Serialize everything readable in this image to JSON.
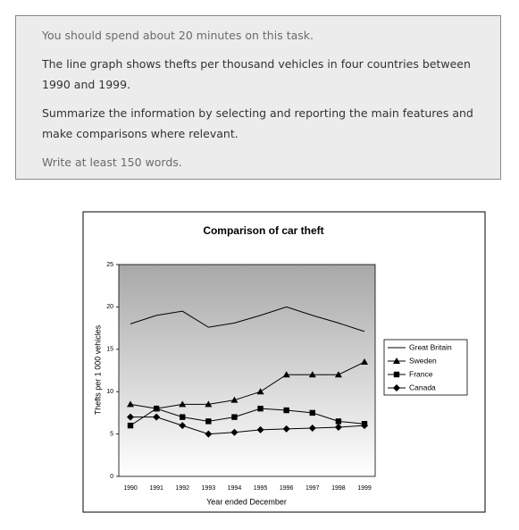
{
  "task": {
    "lines": [
      "You should spend about 20 minutes on this task.",
      "The line graph shows thefts per thousand vehicles in four countries between 1990 and 1999.",
      "Summarize the information by selecting and reporting the main features and make comparisons where relevant.",
      "Write at least 150 words."
    ]
  },
  "chart_data": {
    "type": "line",
    "title": "Comparison of car theft",
    "xlabel": "Year ended December",
    "ylabel": "Thefts per 1 000 vehicles",
    "categories": [
      "1990",
      "1991",
      "1992",
      "1993",
      "1994",
      "1995",
      "1996",
      "1997",
      "1998",
      "1999"
    ],
    "series": [
      {
        "name": "Great Britain",
        "color": "#000000",
        "marker": "none",
        "values": [
          18,
          19,
          19.5,
          17.6,
          18.1,
          19,
          20,
          19,
          18.1,
          17.1
        ]
      },
      {
        "name": "Sweden",
        "color": "#000000",
        "marker": "triangle",
        "values": [
          8.5,
          8,
          8.5,
          8.5,
          9,
          10,
          12,
          12,
          12,
          13.5
        ]
      },
      {
        "name": "France",
        "color": "#000000",
        "marker": "square",
        "values": [
          6,
          8,
          7,
          6.5,
          7,
          8,
          7.8,
          7.5,
          6.5,
          6.2
        ]
      },
      {
        "name": "Canada",
        "color": "#000000",
        "marker": "diamond",
        "values": [
          7,
          7,
          6,
          5,
          5.2,
          5.5,
          5.6,
          5.7,
          5.8,
          6
        ]
      }
    ],
    "ylim": [
      0,
      25
    ],
    "yticks": [
      0,
      5,
      10,
      15,
      20,
      25
    ],
    "grid": false,
    "legend": "right"
  }
}
